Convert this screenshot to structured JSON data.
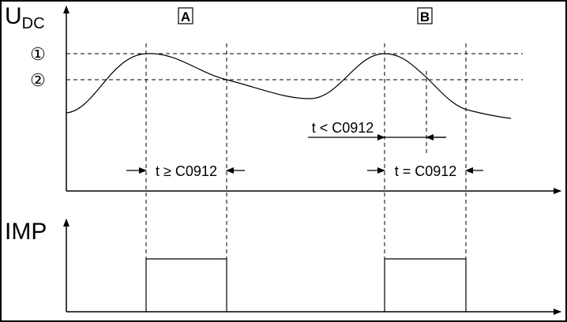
{
  "labels": {
    "u": "U",
    "dc": "DC",
    "imp": "IMP",
    "box_a": "A",
    "box_b": "B",
    "level_1": "①",
    "level_2": "②",
    "t_ge": "t ≥ C0912",
    "t_lt": "t < C0912",
    "t_eq": "t = C0912"
  }
}
